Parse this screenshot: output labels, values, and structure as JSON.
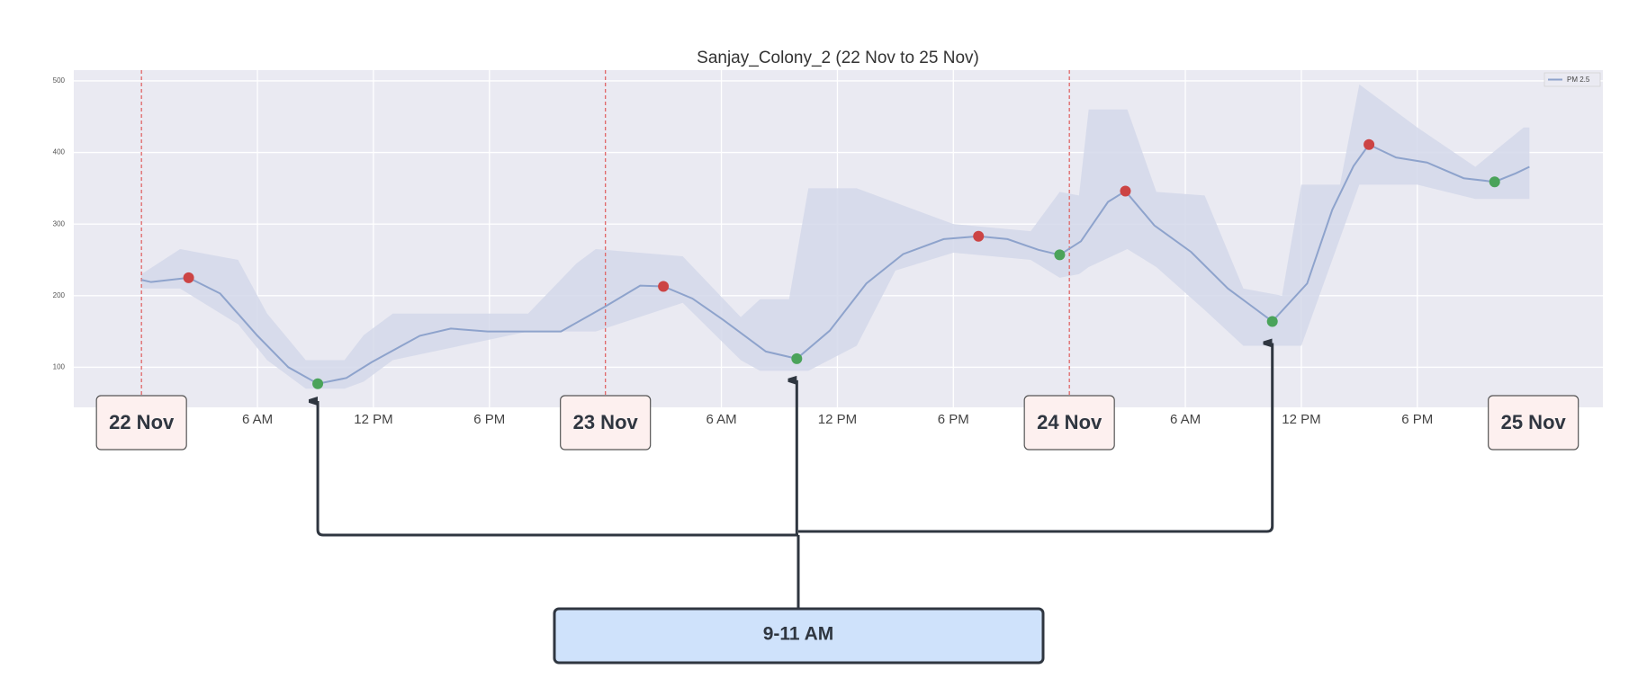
{
  "chart_data": {
    "type": "line",
    "title": "Sanjay_Colony_2 (22 Nov to 25 Nov)",
    "xlim": [
      -3.5,
      75.6
    ],
    "ylim": [
      44,
      515
    ],
    "xticks": [
      {
        "value": 6,
        "label": "6 AM"
      },
      {
        "value": 12,
        "label": "12 PM"
      },
      {
        "value": 18,
        "label": "6 PM"
      },
      {
        "value": 30,
        "label": "6 AM"
      },
      {
        "value": 36,
        "label": "12 PM"
      },
      {
        "value": 42,
        "label": "6 PM"
      },
      {
        "value": 54,
        "label": "6 AM"
      },
      {
        "value": 60,
        "label": "12 PM"
      },
      {
        "value": 66,
        "label": "6 PM"
      }
    ],
    "yticks": [
      100,
      200,
      300,
      400,
      500
    ],
    "grid": true,
    "legend": "upper right",
    "day_markers": [
      {
        "value": 0,
        "label": "22 Nov",
        "line": true
      },
      {
        "value": 24,
        "label": "23 Nov",
        "line": true
      },
      {
        "value": 48,
        "label": "24 Nov",
        "line": true
      },
      {
        "value": 72,
        "label": "25 Nov",
        "line": false
      }
    ],
    "series": [
      {
        "name": "PM 2.5",
        "color": "#8ea3cc",
        "x": [
          0,
          0.5,
          2.44,
          4.07,
          6,
          7.6,
          9.12,
          10.6,
          11.9,
          14.4,
          16,
          17.9,
          21.7,
          24,
          25.8,
          27,
          28.5,
          30.1,
          32.3,
          33.9,
          35.6,
          37.5,
          39.4,
          41.5,
          43.3,
          44.8,
          46.4,
          47.5,
          48.6,
          50,
          50.9,
          52.4,
          54.3,
          56.2,
          58.5,
          60.3,
          61.6,
          62.7,
          63.5,
          64.9,
          66.5,
          68.4,
          70,
          71.1,
          71.8
        ],
        "values": [
          222,
          219,
          225,
          203,
          144,
          100,
          77,
          85,
          107,
          144,
          154,
          150,
          150,
          185,
          214,
          213,
          196,
          166,
          122,
          112,
          151,
          217,
          258,
          279,
          283,
          279,
          264,
          257,
          276,
          331,
          346,
          298,
          261,
          210,
          164,
          217,
          320,
          381,
          411,
          393,
          386,
          364,
          359,
          371,
          380
        ]
      }
    ],
    "band": {
      "color": "#d3d8ea",
      "x": [
        0,
        2,
        5,
        6.5,
        8.5,
        10.5,
        11.5,
        13,
        20,
        22.5,
        23.5,
        28,
        31,
        32,
        33.5,
        34.5,
        37,
        39,
        42,
        46,
        47.5,
        48.5,
        49,
        51,
        52.5,
        55,
        57,
        59,
        60,
        62,
        63,
        66,
        69,
        71.5,
        71.8
      ],
      "upper": [
        230,
        265,
        250,
        175,
        110,
        110,
        145,
        175,
        175,
        245,
        265,
        255,
        170,
        195,
        195,
        350,
        350,
        330,
        300,
        290,
        345,
        340,
        460,
        460,
        345,
        340,
        210,
        200,
        355,
        355,
        495,
        435,
        380,
        435,
        435
      ],
      "lower": [
        210,
        210,
        160,
        110,
        70,
        70,
        80,
        110,
        150,
        150,
        150,
        190,
        110,
        95,
        95,
        95,
        130,
        235,
        260,
        250,
        225,
        230,
        240,
        265,
        240,
        180,
        130,
        130,
        130,
        280,
        355,
        355,
        335,
        335,
        335
      ]
    },
    "highlights": [
      {
        "color": "#cc4444",
        "x": [
          2.44,
          27,
          43.3,
          50.9,
          63.5
        ],
        "values": [
          225,
          213,
          283,
          346,
          411
        ]
      },
      {
        "color": "#4aa35a",
        "x": [
          9.12,
          33.9,
          47.5,
          58.5,
          70
        ],
        "values": [
          77,
          112,
          257,
          164,
          359
        ]
      }
    ],
    "annotation": {
      "text": "9-11 AM"
    }
  }
}
